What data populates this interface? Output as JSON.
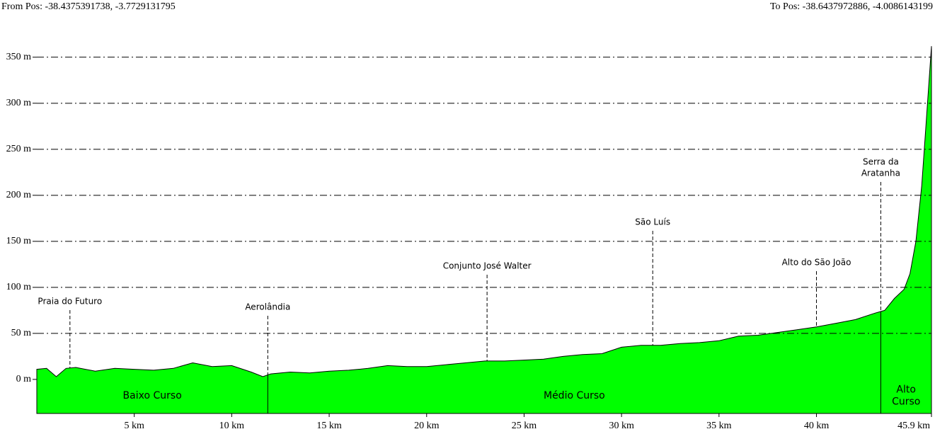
{
  "chart_data": {
    "type": "area",
    "from_label": "From Pos: -38.4375391738, -3.7729131795",
    "to_label": "To Pos: -38.6437972886, -4.0086143199",
    "color": "#00ff00",
    "x": [
      0,
      0.5,
      1,
      1.5,
      2,
      3,
      4,
      5,
      6,
      7,
      8,
      9,
      10,
      11,
      11.6,
      12,
      13,
      14,
      15,
      16,
      17,
      18,
      19,
      20,
      21,
      22,
      23,
      24,
      25,
      26,
      27,
      28,
      29,
      30,
      31,
      32,
      33,
      34,
      35,
      36,
      37,
      38,
      39,
      40,
      41,
      42,
      43,
      43.5,
      44,
      44.5,
      44.8,
      45.1,
      45.4,
      45.6,
      45.9
    ],
    "values": [
      11,
      12,
      3,
      12,
      13,
      9,
      12,
      11,
      10,
      12,
      18,
      14,
      15,
      8,
      3,
      6,
      8,
      7,
      9,
      10,
      12,
      15,
      14,
      14,
      16,
      18,
      20,
      20,
      21,
      22,
      25,
      27,
      28,
      35,
      37,
      37,
      39,
      40,
      42,
      47,
      48,
      51,
      54,
      57,
      61,
      65,
      72,
      75,
      88,
      98,
      115,
      150,
      210,
      270,
      362
    ],
    "xlim": [
      0,
      45.9
    ],
    "ylim": [
      -37,
      366
    ],
    "xticks": [
      {
        "value": 5,
        "label": "5 km"
      },
      {
        "value": 10,
        "label": "10 km"
      },
      {
        "value": 15,
        "label": "15 km"
      },
      {
        "value": 20,
        "label": "20 km"
      },
      {
        "value": 25,
        "label": "25 km"
      },
      {
        "value": 30,
        "label": "30 km"
      },
      {
        "value": 35,
        "label": "35 km"
      },
      {
        "value": 40,
        "label": "40 km"
      },
      {
        "value": 45.9,
        "label": "45.9 km"
      }
    ],
    "yticks": [
      {
        "value": 0,
        "label": "0 m"
      },
      {
        "value": 50,
        "label": "50 m"
      },
      {
        "value": 100,
        "label": "100 m"
      },
      {
        "value": 150,
        "label": "150 m"
      },
      {
        "value": 200,
        "label": "200 m"
      },
      {
        "value": 250,
        "label": "250 m"
      },
      {
        "value": 300,
        "label": "300 m"
      },
      {
        "value": 350,
        "label": "350 m"
      }
    ],
    "grid": true,
    "annotations": [
      {
        "x": 1.7,
        "lines": [
          "Praia do Futuro"
        ]
      },
      {
        "x": 11.85,
        "lines": [
          "Aerolândia"
        ]
      },
      {
        "x": 23.1,
        "lines": [
          "Conjunto José Walter"
        ]
      },
      {
        "x": 31.6,
        "lines": [
          "São Luís"
        ]
      },
      {
        "x": 40.0,
        "lines": [
          "Alto do São João"
        ]
      },
      {
        "x": 43.3,
        "lines": [
          "Serra da",
          "Aratanha"
        ]
      }
    ],
    "regions": [
      {
        "from": 0,
        "to": 11.85,
        "lines": [
          "Baixo Curso"
        ]
      },
      {
        "from": 11.85,
        "to": 43.3,
        "lines": [
          "Médio Curso"
        ]
      },
      {
        "from": 43.3,
        "to": 45.9,
        "lines": [
          "Alto",
          "Curso"
        ]
      }
    ]
  }
}
